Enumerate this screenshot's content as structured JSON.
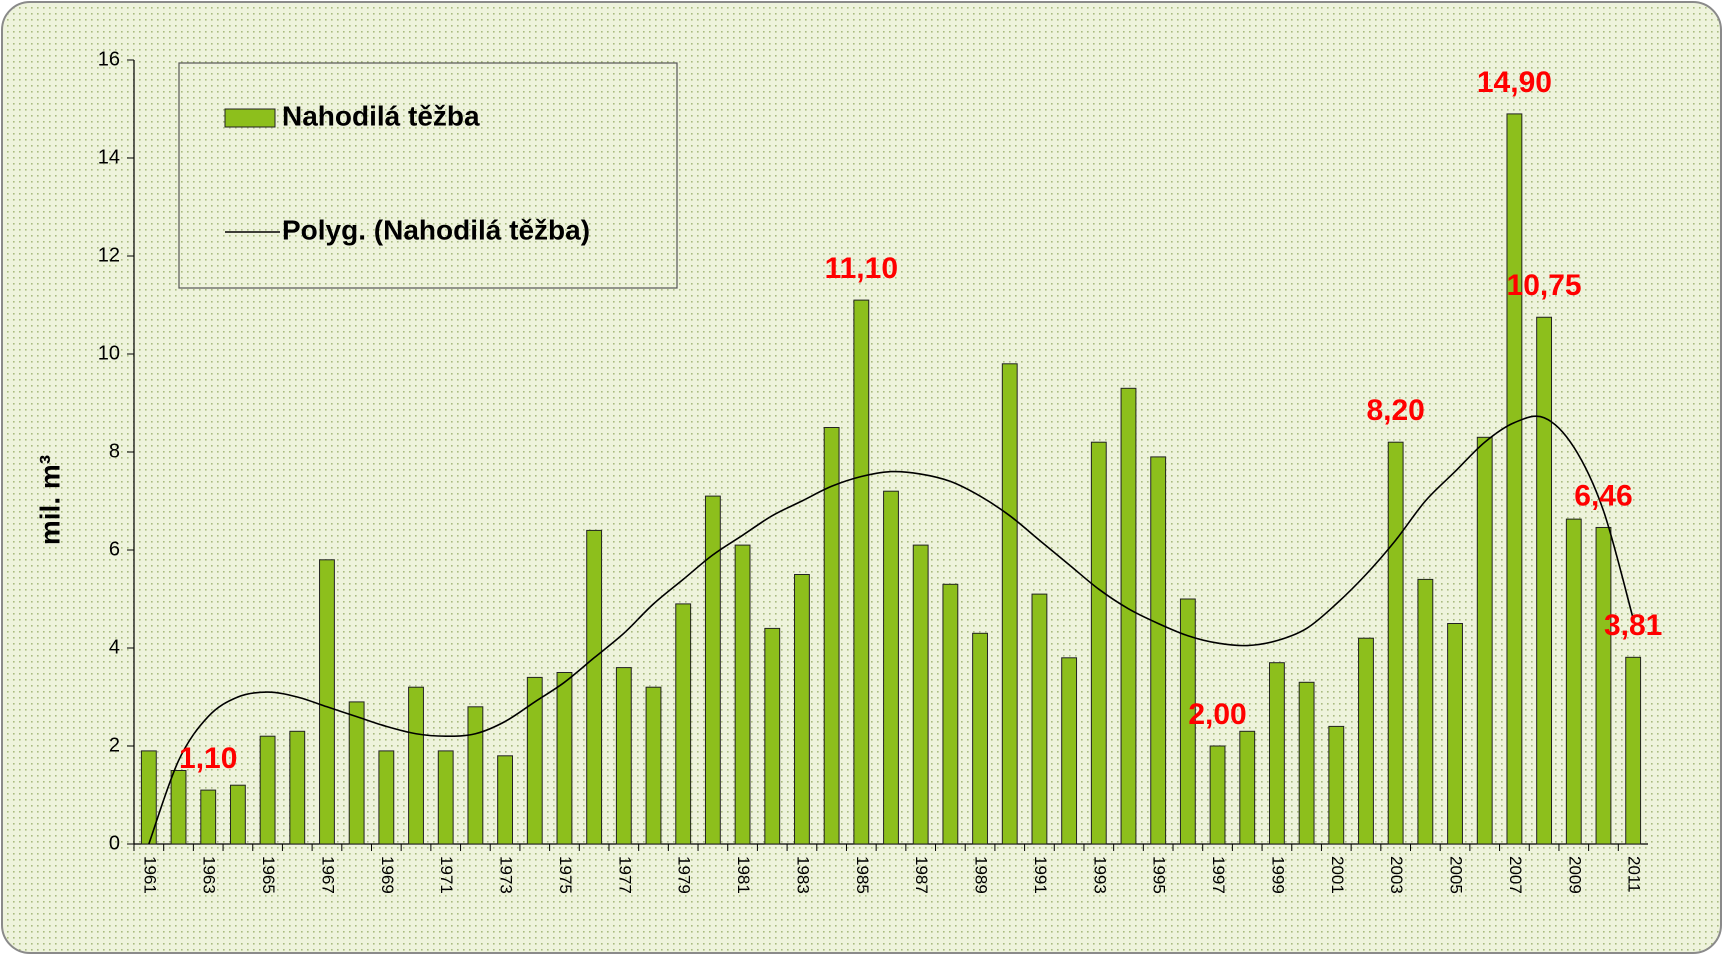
{
  "chart_data": {
    "type": "bar",
    "ylabel": "mil. m³",
    "categories": [
      "1961",
      null,
      "1963",
      null,
      "1965",
      null,
      "1967",
      null,
      "1969",
      null,
      "1971",
      null,
      "1973",
      null,
      "1975",
      null,
      "1977",
      null,
      "1979",
      null,
      "1981",
      null,
      "1983",
      null,
      "1985",
      null,
      "1987",
      null,
      "1989",
      null,
      "1991",
      null,
      "1993",
      null,
      "1995",
      null,
      "1997",
      null,
      "1999",
      null,
      "2001",
      null,
      "2003",
      null,
      "2005",
      null,
      "2007",
      null,
      "2009",
      null,
      "2011"
    ],
    "series": [
      {
        "name": "Nahodilá těžba",
        "type": "bar",
        "color": "#8dbf1c",
        "values": [
          1.9,
          1.5,
          1.1,
          1.2,
          2.2,
          2.3,
          5.8,
          2.9,
          1.9,
          3.2,
          1.9,
          2.8,
          1.8,
          3.4,
          3.5,
          6.4,
          3.6,
          3.2,
          4.9,
          7.1,
          6.1,
          4.4,
          5.5,
          8.5,
          11.1,
          7.2,
          6.1,
          5.3,
          4.3,
          9.8,
          5.1,
          3.8,
          8.2,
          9.3,
          7.9,
          5.0,
          2.0,
          2.3,
          3.7,
          3.3,
          2.4,
          4.2,
          8.2,
          5.4,
          4.5,
          8.3,
          14.9,
          10.75,
          6.63,
          6.46,
          3.81
        ],
        "value_labels": [
          null,
          null,
          "1,10",
          null,
          null,
          null,
          null,
          null,
          null,
          null,
          null,
          null,
          null,
          null,
          null,
          null,
          null,
          null,
          null,
          null,
          null,
          null,
          null,
          null,
          "11,10",
          null,
          null,
          null,
          null,
          null,
          null,
          null,
          null,
          null,
          null,
          null,
          "2,00",
          null,
          null,
          null,
          null,
          null,
          "8,20",
          null,
          null,
          null,
          "14,90",
          "10,75",
          null,
          "6,46",
          "3,81"
        ]
      },
      {
        "name": "Polyg. (Nahodilá těžba)",
        "type": "line",
        "color": "#000000",
        "values": [
          0,
          1.7,
          2.6,
          3.0,
          3.1,
          3.0,
          2.8,
          2.6,
          2.4,
          2.25,
          2.2,
          2.25,
          2.5,
          2.9,
          3.3,
          3.8,
          4.3,
          4.9,
          5.4,
          5.9,
          6.3,
          6.7,
          7.0,
          7.3,
          7.5,
          7.6,
          7.55,
          7.4,
          7.1,
          6.7,
          6.2,
          5.7,
          5.2,
          4.8,
          4.5,
          4.25,
          4.1,
          4.05,
          4.15,
          4.4,
          4.9,
          5.5,
          6.2,
          7.0,
          7.6,
          8.2,
          8.6,
          8.7,
          8.1,
          6.8,
          4.6
        ]
      }
    ],
    "value_label_color": "#ff0000",
    "ylim": [
      0,
      16
    ],
    "yticks": [
      0,
      2,
      4,
      6,
      8,
      10,
      12,
      14,
      16
    ]
  }
}
